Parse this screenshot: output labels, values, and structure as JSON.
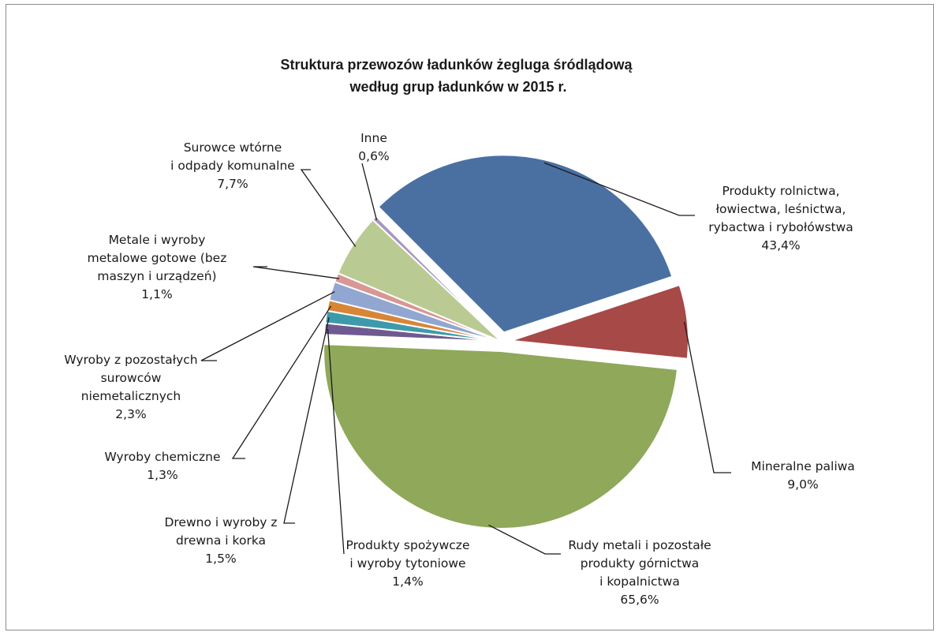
{
  "chart_data": {
    "type": "pie",
    "title": [
      "Struktura przewozów ładunków żegluga śródlądową",
      "według grup ładunków w 2015 r."
    ],
    "slices": [
      {
        "label": [
          "Produkty rolnictwa,",
          "łowiectwa, leśnictwa,",
          "rybactwa i rybołówstwa"
        ],
        "value": 43.4,
        "value_label": "43,4%",
        "color": "#4a70a2"
      },
      {
        "label": [
          "Mineralne paliwa"
        ],
        "value": 9.0,
        "value_label": "9,0%",
        "color": "#a74947"
      },
      {
        "label": [
          "Rudy metali i pozostałe",
          "produkty górnictwa",
          "i kopalnictwa"
        ],
        "value": 65.6,
        "value_label": "65,6%",
        "color": "#8fa85a"
      },
      {
        "label": [
          "Produkty spożywcze",
          "i wyroby tytoniowe"
        ],
        "value": 1.4,
        "value_label": "1,4%",
        "color": "#6f5a8f"
      },
      {
        "label": [
          "Drewno i wyroby z",
          "drewna i korka"
        ],
        "value": 1.5,
        "value_label": "1,5%",
        "color": "#3d9aab"
      },
      {
        "label": [
          "Wyroby chemiczne"
        ],
        "value": 1.3,
        "value_label": "1,3%",
        "color": "#d88538"
      },
      {
        "label": [
          "Wyroby z pozostałych",
          "surowców",
          "niemetalicznych"
        ],
        "value": 2.3,
        "value_label": "2,3%",
        "color": "#91a7d1"
      },
      {
        "label": [
          "Metale i wyroby",
          "metalowe gotowe (bez",
          "maszyn i urządzeń)"
        ],
        "value": 1.1,
        "value_label": "1,1%",
        "color": "#d89795"
      },
      {
        "label": [
          "Surowce wtórne",
          "i odpady komunalne"
        ],
        "value": 7.7,
        "value_label": "7,7%",
        "color": "#b9cb92"
      },
      {
        "label": [
          "Inne"
        ],
        "value": 0.6,
        "value_label": "0,6%",
        "color": "#a796c1"
      }
    ]
  }
}
